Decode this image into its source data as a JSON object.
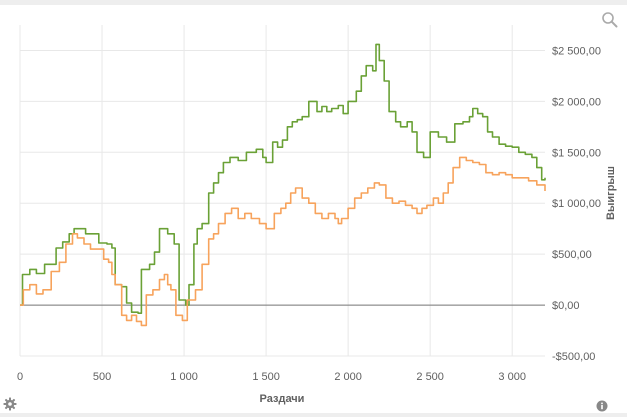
{
  "chart_data": {
    "type": "line",
    "xlabel": "Раздачи",
    "ylabel": "Выигрыш",
    "xlim": [
      0,
      3200
    ],
    "ylim": [
      -500,
      2750
    ],
    "x_ticks": [
      0,
      500,
      1000,
      1500,
      2000,
      2500,
      3000
    ],
    "x_tick_labels": [
      "0",
      "500",
      "1 000",
      "1 500",
      "2 000",
      "2 500",
      "3 000"
    ],
    "y_ticks": [
      2500,
      2000,
      1500,
      1000,
      500,
      0,
      -500
    ],
    "y_tick_labels": [
      "$2 500,00",
      "$2 000,00",
      "$1 500,00",
      "$1 000,00",
      "$500,00",
      "$0,00",
      "-$500,00"
    ],
    "grid": true,
    "series": [
      {
        "color": "#6aa136",
        "points": [
          [
            0,
            0
          ],
          [
            15,
            300
          ],
          [
            60,
            350
          ],
          [
            100,
            310
          ],
          [
            150,
            400
          ],
          [
            220,
            560
          ],
          [
            260,
            620
          ],
          [
            300,
            700
          ],
          [
            330,
            750
          ],
          [
            400,
            700
          ],
          [
            480,
            610
          ],
          [
            530,
            600
          ],
          [
            560,
            560
          ],
          [
            580,
            200
          ],
          [
            620,
            180
          ],
          [
            650,
            20
          ],
          [
            680,
            -70
          ],
          [
            720,
            -80
          ],
          [
            740,
            350
          ],
          [
            790,
            400
          ],
          [
            820,
            520
          ],
          [
            850,
            750
          ],
          [
            900,
            700
          ],
          [
            940,
            600
          ],
          [
            970,
            50
          ],
          [
            1010,
            0
          ],
          [
            1030,
            200
          ],
          [
            1060,
            600
          ],
          [
            1080,
            750
          ],
          [
            1110,
            800
          ],
          [
            1150,
            1100
          ],
          [
            1180,
            1200
          ],
          [
            1210,
            1300
          ],
          [
            1240,
            1400
          ],
          [
            1280,
            1450
          ],
          [
            1330,
            1420
          ],
          [
            1380,
            1500
          ],
          [
            1440,
            1530
          ],
          [
            1480,
            1450
          ],
          [
            1500,
            1400
          ],
          [
            1540,
            1600
          ],
          [
            1570,
            1550
          ],
          [
            1600,
            1620
          ],
          [
            1630,
            1750
          ],
          [
            1660,
            1800
          ],
          [
            1690,
            1820
          ],
          [
            1720,
            1850
          ],
          [
            1760,
            2000
          ],
          [
            1790,
            2000
          ],
          [
            1810,
            1900
          ],
          [
            1840,
            1950
          ],
          [
            1870,
            1900
          ],
          [
            1900,
            1930
          ],
          [
            1940,
            1960
          ],
          [
            1970,
            1880
          ],
          [
            2000,
            2000
          ],
          [
            2050,
            2100
          ],
          [
            2080,
            2250
          ],
          [
            2110,
            2350
          ],
          [
            2150,
            2300
          ],
          [
            2170,
            2560
          ],
          [
            2190,
            2400
          ],
          [
            2220,
            2200
          ],
          [
            2250,
            1900
          ],
          [
            2290,
            1800
          ],
          [
            2320,
            1750
          ],
          [
            2360,
            1800
          ],
          [
            2390,
            1700
          ],
          [
            2420,
            1500
          ],
          [
            2460,
            1450
          ],
          [
            2500,
            1700
          ],
          [
            2550,
            1650
          ],
          [
            2600,
            1600
          ],
          [
            2650,
            1780
          ],
          [
            2700,
            1800
          ],
          [
            2740,
            1850
          ],
          [
            2760,
            1930
          ],
          [
            2790,
            1880
          ],
          [
            2820,
            1850
          ],
          [
            2850,
            1700
          ],
          [
            2880,
            1650
          ],
          [
            2920,
            1580
          ],
          [
            2960,
            1560
          ],
          [
            3000,
            1550
          ],
          [
            3040,
            1500
          ],
          [
            3080,
            1480
          ],
          [
            3120,
            1450
          ],
          [
            3150,
            1350
          ],
          [
            3180,
            1230
          ],
          [
            3200,
            1250
          ]
        ]
      },
      {
        "color": "#f7a35c",
        "points": [
          [
            0,
            0
          ],
          [
            20,
            150
          ],
          [
            60,
            200
          ],
          [
            100,
            110
          ],
          [
            140,
            150
          ],
          [
            190,
            330
          ],
          [
            240,
            420
          ],
          [
            280,
            600
          ],
          [
            320,
            700
          ],
          [
            350,
            660
          ],
          [
            390,
            600
          ],
          [
            430,
            550
          ],
          [
            470,
            550
          ],
          [
            510,
            450
          ],
          [
            540,
            420
          ],
          [
            560,
            300
          ],
          [
            580,
            200
          ],
          [
            620,
            -100
          ],
          [
            650,
            -150
          ],
          [
            680,
            -100
          ],
          [
            710,
            -160
          ],
          [
            740,
            -200
          ],
          [
            770,
            100
          ],
          [
            810,
            150
          ],
          [
            850,
            250
          ],
          [
            880,
            300
          ],
          [
            900,
            200
          ],
          [
            920,
            150
          ],
          [
            950,
            -100
          ],
          [
            990,
            -150
          ],
          [
            1020,
            50
          ],
          [
            1040,
            50
          ],
          [
            1070,
            150
          ],
          [
            1110,
            400
          ],
          [
            1150,
            650
          ],
          [
            1180,
            700
          ],
          [
            1210,
            800
          ],
          [
            1250,
            900
          ],
          [
            1290,
            950
          ],
          [
            1330,
            850
          ],
          [
            1370,
            900
          ],
          [
            1410,
            850
          ],
          [
            1460,
            800
          ],
          [
            1500,
            750
          ],
          [
            1550,
            900
          ],
          [
            1590,
            950
          ],
          [
            1620,
            1000
          ],
          [
            1650,
            1100
          ],
          [
            1680,
            1150
          ],
          [
            1720,
            1050
          ],
          [
            1760,
            1000
          ],
          [
            1800,
            900
          ],
          [
            1840,
            850
          ],
          [
            1880,
            900
          ],
          [
            1920,
            850
          ],
          [
            1940,
            800
          ],
          [
            1960,
            850
          ],
          [
            2000,
            950
          ],
          [
            2040,
            1050
          ],
          [
            2080,
            1100
          ],
          [
            2120,
            1150
          ],
          [
            2160,
            1200
          ],
          [
            2190,
            1180
          ],
          [
            2230,
            1050
          ],
          [
            2270,
            1000
          ],
          [
            2310,
            1020
          ],
          [
            2350,
            980
          ],
          [
            2390,
            950
          ],
          [
            2420,
            900
          ],
          [
            2450,
            950
          ],
          [
            2480,
            980
          ],
          [
            2520,
            1050
          ],
          [
            2550,
            1000
          ],
          [
            2580,
            1100
          ],
          [
            2610,
            1200
          ],
          [
            2640,
            1350
          ],
          [
            2680,
            1450
          ],
          [
            2720,
            1420
          ],
          [
            2760,
            1400
          ],
          [
            2800,
            1380
          ],
          [
            2840,
            1300
          ],
          [
            2880,
            1280
          ],
          [
            2920,
            1300
          ],
          [
            2960,
            1280
          ],
          [
            3000,
            1250
          ],
          [
            3050,
            1250
          ],
          [
            3100,
            1220
          ],
          [
            3150,
            1180
          ],
          [
            3200,
            1120
          ]
        ]
      }
    ]
  }
}
